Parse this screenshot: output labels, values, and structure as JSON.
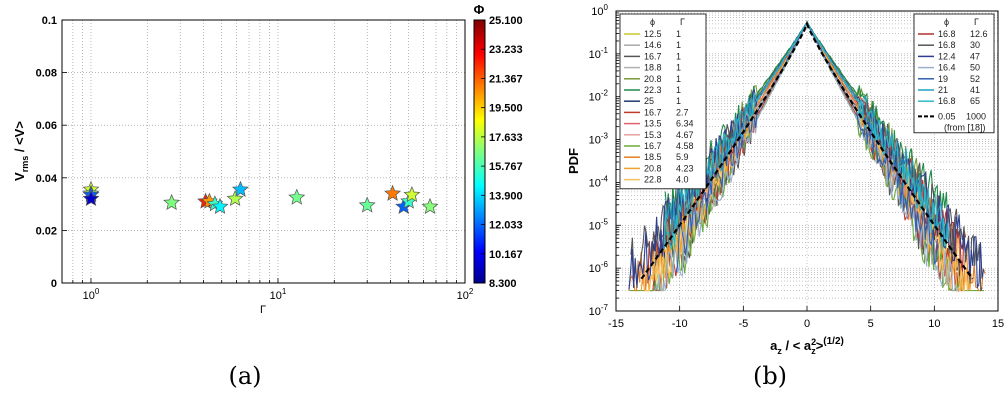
{
  "panels": {
    "a": {
      "caption": "(a)"
    },
    "b": {
      "caption": "(b)"
    }
  },
  "chart_data": [
    {
      "type": "scatter",
      "panel": "a",
      "xlabel": "Γ",
      "ylabel_main": "V",
      "ylabel_sub": "rms",
      "ylabel_rest": " / <V>",
      "xscale": "log",
      "xlim": [
        0.7,
        100
      ],
      "ylim": [
        0,
        0.1
      ],
      "grid": true,
      "x_ticks": [
        {
          "v": 1,
          "b": "10",
          "e": "0"
        },
        {
          "v": 10,
          "b": "10",
          "e": "1"
        },
        {
          "v": 100,
          "b": "10",
          "e": "2"
        }
      ],
      "y_ticks": [
        {
          "v": 0,
          "t": "0"
        },
        {
          "v": 0.02,
          "t": "0.02"
        },
        {
          "v": 0.04,
          "t": "0.04"
        },
        {
          "v": 0.06,
          "t": "0.06"
        },
        {
          "v": 0.08,
          "t": "0.08"
        },
        {
          "v": 0.1,
          "t": "0.1"
        }
      ],
      "colorbar": {
        "title": "Φ",
        "min": 8.3,
        "max": 25.1,
        "tick_labels": [
          "25.100",
          "23.233",
          "21.367",
          "19.500",
          "17.633",
          "15.767",
          "13.900",
          "12.033",
          "10.167",
          "8.300"
        ]
      },
      "points": [
        {
          "x": 1.0,
          "y": 0.0355,
          "phi": 18.0
        },
        {
          "x": 1.0,
          "y": 0.034,
          "phi": 17.0
        },
        {
          "x": 1.0,
          "y": 0.0335,
          "phi": 12.0
        },
        {
          "x": 1.0,
          "y": 0.032,
          "phi": 9.5
        },
        {
          "x": 2.7,
          "y": 0.0305,
          "phi": 16.7
        },
        {
          "x": 4.1,
          "y": 0.031,
          "phi": 22.5
        },
        {
          "x": 4.3,
          "y": 0.031,
          "phi": 20.5
        },
        {
          "x": 4.6,
          "y": 0.03,
          "phi": 15.5
        },
        {
          "x": 4.9,
          "y": 0.029,
          "phi": 14.5
        },
        {
          "x": 5.9,
          "y": 0.032,
          "phi": 17.5
        },
        {
          "x": 6.3,
          "y": 0.0355,
          "phi": 13.5
        },
        {
          "x": 12.6,
          "y": 0.0325,
          "phi": 16.5
        },
        {
          "x": 30,
          "y": 0.0295,
          "phi": 16.3
        },
        {
          "x": 41,
          "y": 0.034,
          "phi": 21.0
        },
        {
          "x": 47,
          "y": 0.029,
          "phi": 12.0
        },
        {
          "x": 50,
          "y": 0.031,
          "phi": 15.5
        },
        {
          "x": 52,
          "y": 0.0335,
          "phi": 18.0
        },
        {
          "x": 65,
          "y": 0.029,
          "phi": 16.8
        }
      ]
    },
    {
      "type": "line",
      "panel": "b",
      "ylabel": "PDF",
      "xlabel_parts": {
        "a": "a",
        "z": "z",
        "rest": " / < a",
        "two": "2",
        "close": ">",
        "pow": "(1/2)"
      },
      "yscale": "log",
      "xlim": [
        -15,
        15
      ],
      "ylim": [
        1e-07,
        1
      ],
      "grid": true,
      "x_ticks": [
        "-15",
        "-10",
        "-5",
        "0",
        "5",
        "10",
        "15"
      ],
      "y_ticks": [
        {
          "b": "10",
          "e": "0"
        },
        {
          "b": "10",
          "e": "-1"
        },
        {
          "b": "10",
          "e": "-2"
        },
        {
          "b": "10",
          "e": "-3"
        },
        {
          "b": "10",
          "e": "-4"
        },
        {
          "b": "10",
          "e": "-5"
        },
        {
          "b": "10",
          "e": "-6"
        },
        {
          "b": "10",
          "e": "-7"
        }
      ],
      "legend_left": {
        "headers": [
          "ϕ",
          "Γ"
        ],
        "entries": [
          {
            "phi": "12.5",
            "gamma": "1",
            "color": "#c8c830"
          },
          {
            "phi": "14.6",
            "gamma": "1",
            "color": "#aaaaaa"
          },
          {
            "phi": "16.7",
            "gamma": "1",
            "color": "#555555"
          },
          {
            "phi": "18.8",
            "gamma": "1",
            "color": "#b0b0b0"
          },
          {
            "phi": "20.8",
            "gamma": "1",
            "color": "#7a9a3a"
          },
          {
            "phi": "22.3",
            "gamma": "1",
            "color": "#1e8a4a"
          },
          {
            "phi": "25",
            "gamma": "1",
            "color": "#1f3a6a"
          },
          {
            "phi": "16.7",
            "gamma": "2.7",
            "color": "#c0392b"
          },
          {
            "phi": "13.5",
            "gamma": "6.34",
            "color": "#e06070"
          },
          {
            "phi": "15.3",
            "gamma": "4.67",
            "color": "#e8a0a0"
          },
          {
            "phi": "16.7",
            "gamma": "4.58",
            "color": "#6aaa3a"
          },
          {
            "phi": "18.5",
            "gamma": "5.9",
            "color": "#e67e22"
          },
          {
            "phi": "20.8",
            "gamma": "4.23",
            "color": "#f0a030"
          },
          {
            "phi": "22.8",
            "gamma": "4.0",
            "color": "#f4c060"
          }
        ]
      },
      "legend_right": {
        "headers": [
          "ϕ",
          "Γ"
        ],
        "entries": [
          {
            "phi": "16.8",
            "gamma": "12.6",
            "color": "#b03030"
          },
          {
            "phi": "16.8",
            "gamma": "30",
            "color": "#555555"
          },
          {
            "phi": "12.4",
            "gamma": "47",
            "color": "#2c3e90"
          },
          {
            "phi": "16.4",
            "gamma": "50",
            "color": "#9ab0d0"
          },
          {
            "phi": "19",
            "gamma": "52",
            "color": "#3060b0"
          },
          {
            "phi": "21",
            "gamma": "41",
            "color": "#20a0c0"
          },
          {
            "phi": "16.8",
            "gamma": "65",
            "color": "#30b8c8"
          }
        ],
        "ref": {
          "phi": "0.05",
          "gamma": "1000",
          "note": "(from [18])"
        }
      }
    }
  ]
}
